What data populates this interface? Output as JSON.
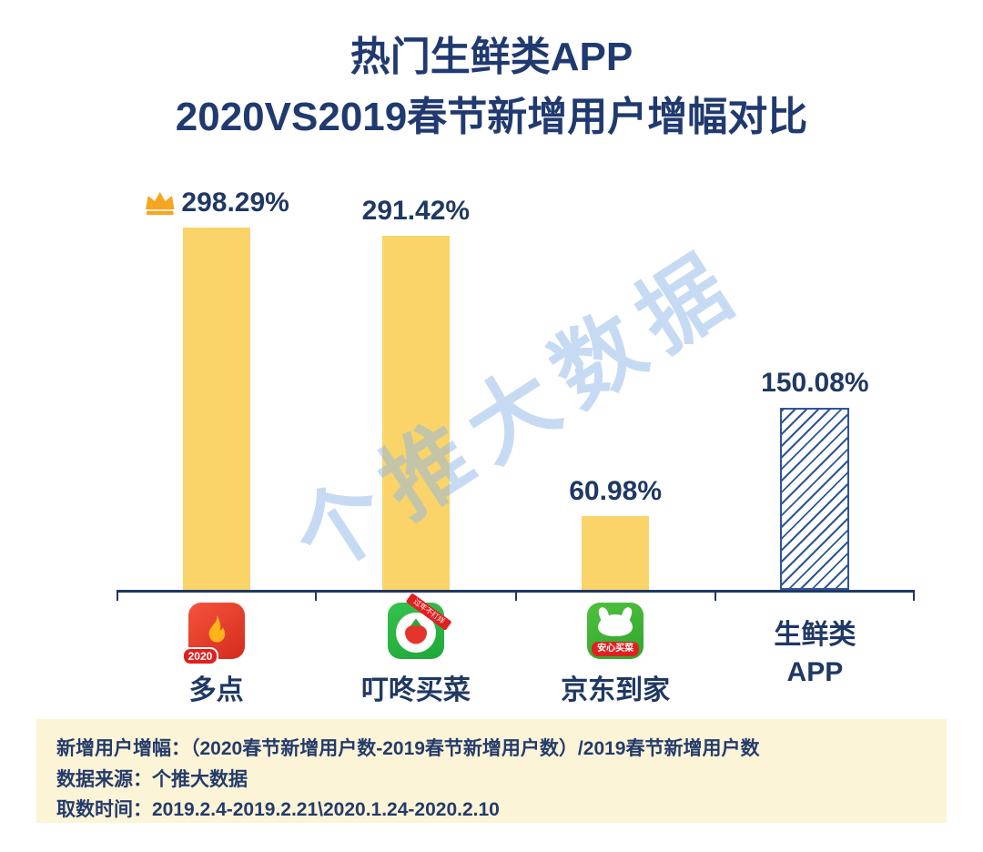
{
  "title": {
    "line1": "热门生鲜类APP",
    "line2": "2020VS2019春节新增用户增幅对比"
  },
  "watermark": {
    "text": "个推大数据"
  },
  "chart_data": {
    "type": "bar",
    "title": "热门生鲜类APP 2020VS2019春节新增用户增幅对比",
    "categories": [
      "多点",
      "叮咚买菜",
      "京东到家",
      "生鲜类APP"
    ],
    "values": [
      298.29,
      291.42,
      60.98,
      150.08
    ],
    "ylim": [
      0,
      300
    ],
    "grid": false,
    "legend": "none",
    "bars": [
      {
        "id": "duodian",
        "name": "多点",
        "value": 298.29,
        "label": "298.29%",
        "crown": true,
        "style": "solid",
        "icon": {
          "badge": "2020"
        }
      },
      {
        "id": "dingdong",
        "name": "叮咚买菜",
        "value": 291.42,
        "label": "291.42%",
        "crown": false,
        "style": "solid",
        "icon": {
          "ribbon": "过年不打烊"
        }
      },
      {
        "id": "jddaojia",
        "name": "京东到家",
        "value": 60.98,
        "label": "60.98%",
        "crown": false,
        "style": "solid",
        "icon": {
          "banner": "安心买菜"
        }
      },
      {
        "id": "category-average",
        "name": "生鲜类APP",
        "name_line1": "生鲜类",
        "name_line2": "APP",
        "value": 150.08,
        "label": "150.08%",
        "crown": false,
        "style": "hatched",
        "icon": null
      }
    ],
    "colors": {
      "bar_fill": "#FAD469",
      "hatched_stroke": "#2F5597",
      "axis": "#1F3864",
      "text": "#1F3864",
      "crown": "#F6A623",
      "watermark": "#8FB8E8",
      "footer_bg": "#FCF4D7"
    }
  },
  "footer": {
    "line1": "新增用户增幅：（2020春节新增用户数-2019春节新增用户数）/2019春节新增用户数",
    "line2": "数据来源：个推大数据",
    "line3": "取数时间：2019.2.4-2019.2.21\\2020.1.24-2020.2.10"
  }
}
